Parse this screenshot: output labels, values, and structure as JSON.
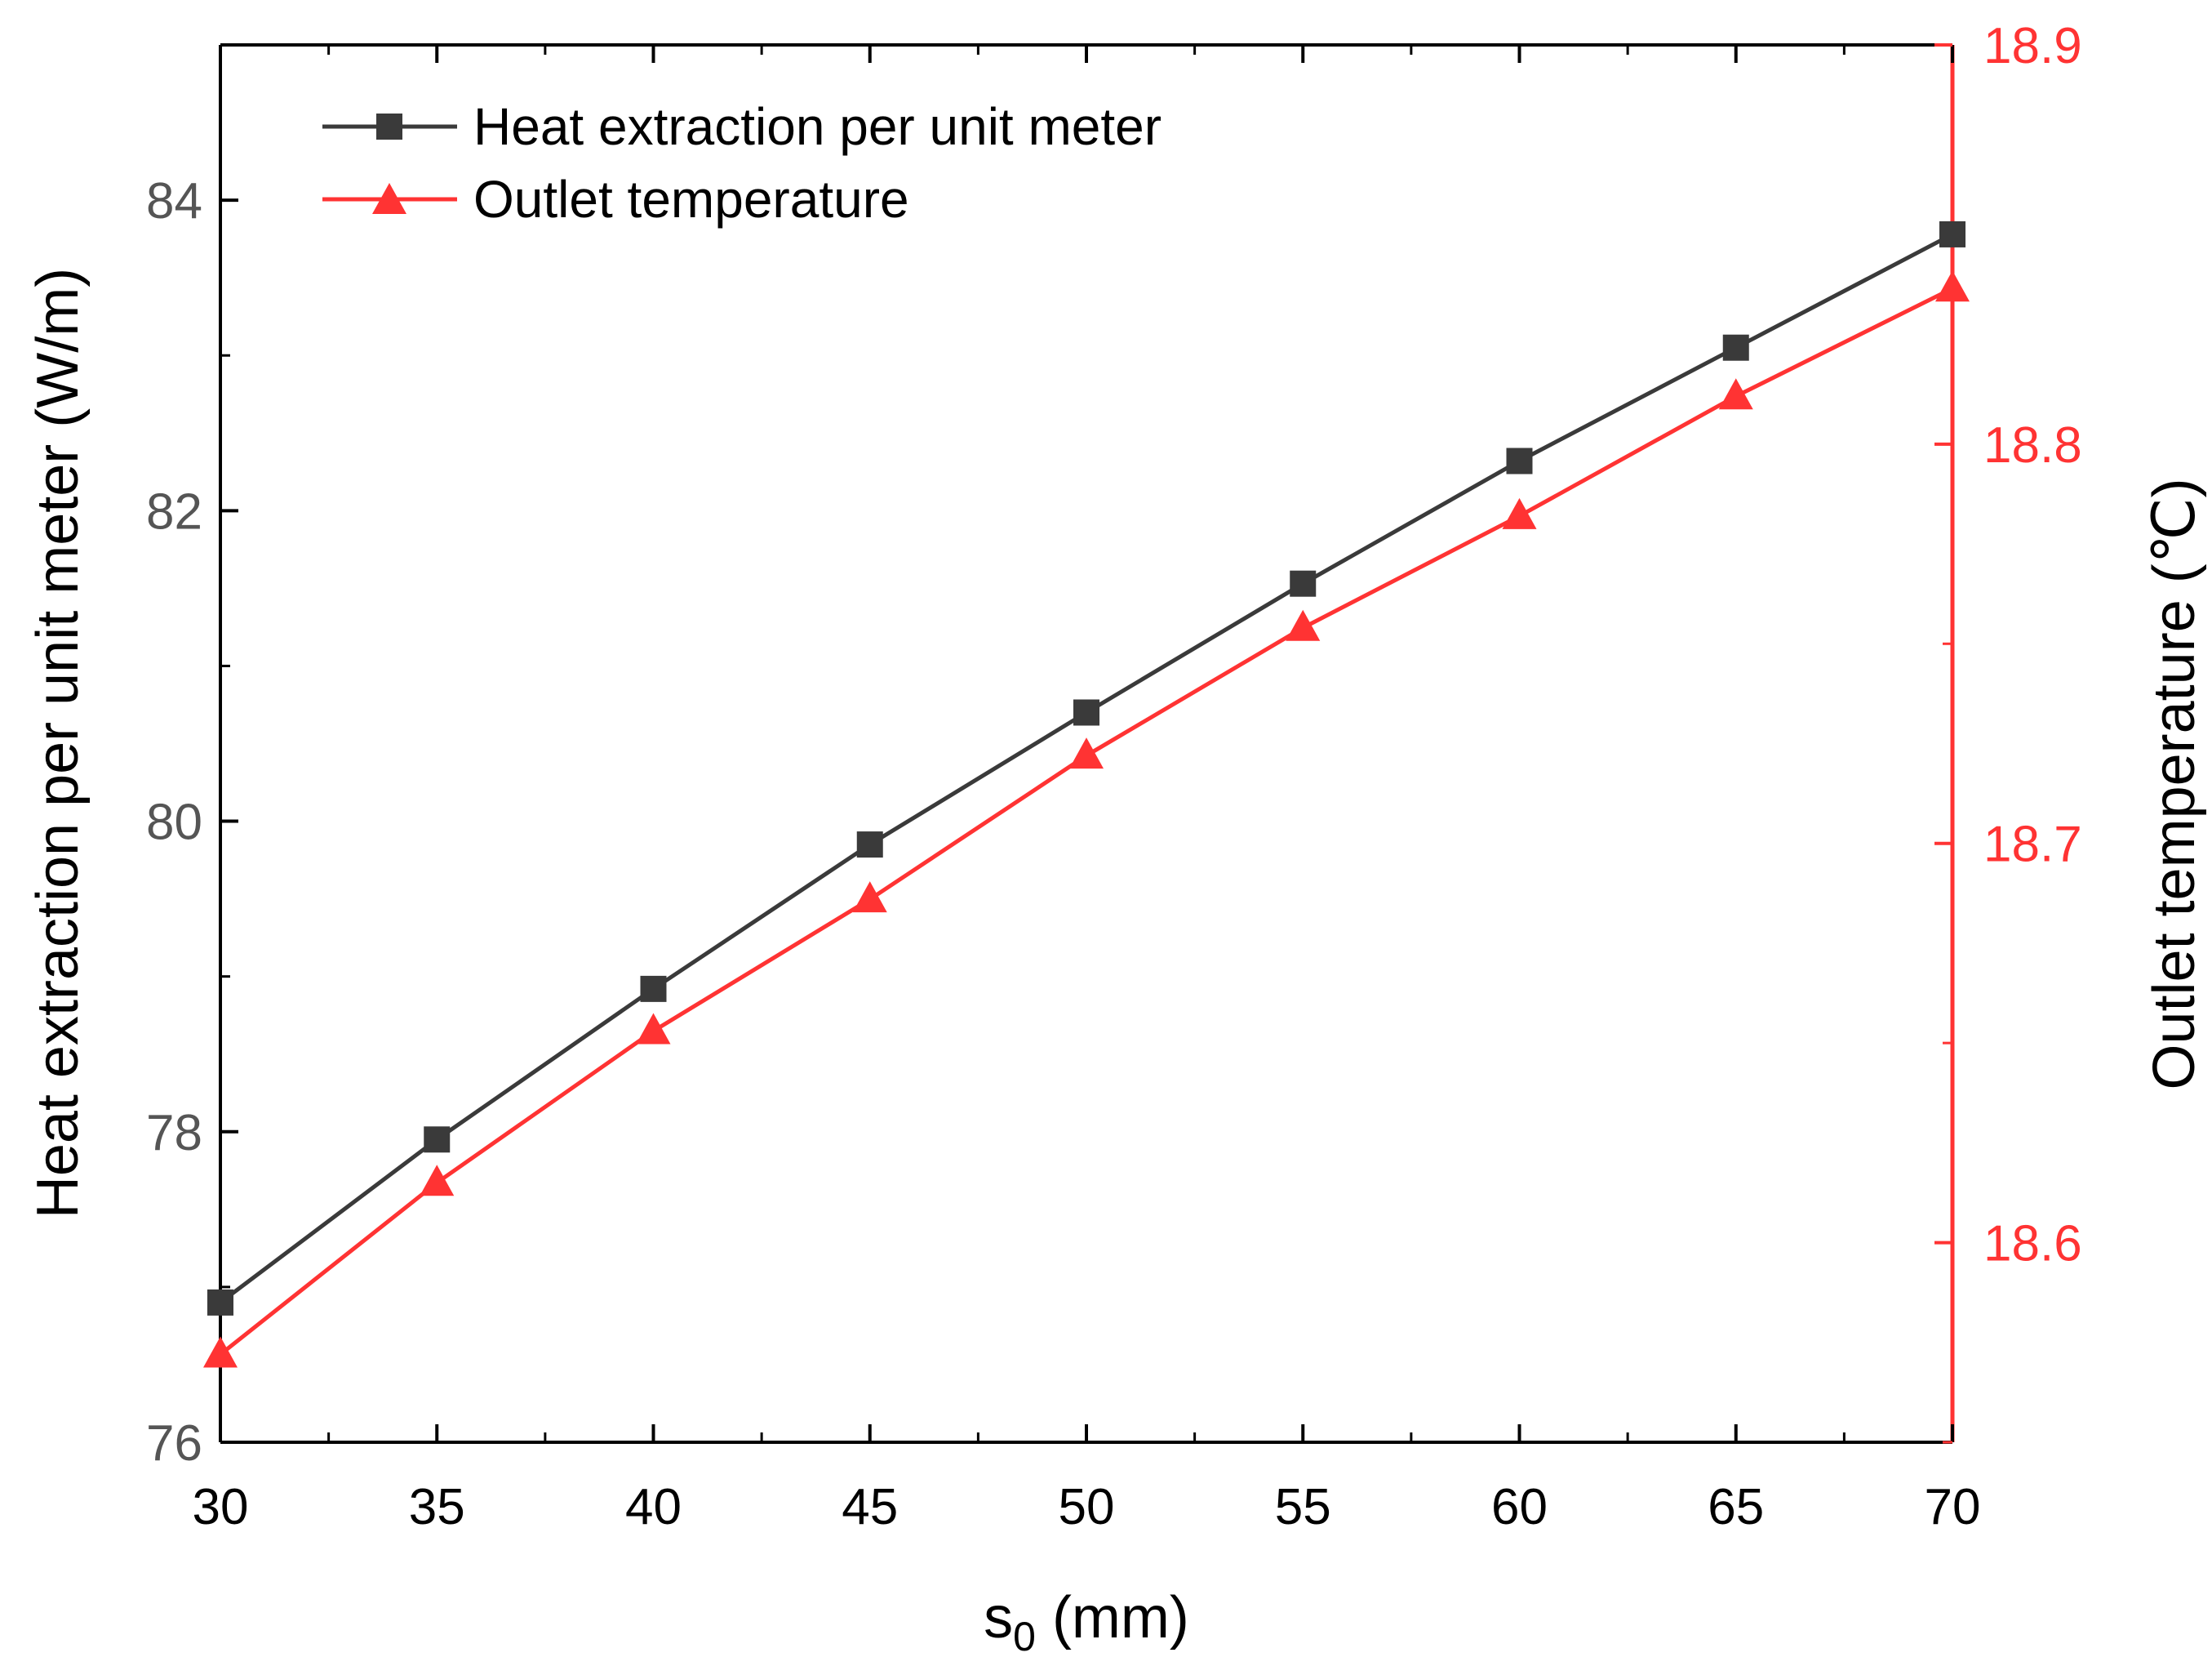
{
  "chart_data": {
    "type": "line",
    "title": "",
    "xlabel": "s",
    "xlabel_sub": "0",
    "xlabel_unit": " (mm)",
    "x": [
      30,
      35,
      40,
      45,
      50,
      55,
      60,
      65,
      70
    ],
    "xlim": [
      30,
      70
    ],
    "xticks": [
      30,
      35,
      40,
      45,
      50,
      55,
      60,
      65,
      70
    ],
    "xtick_labels": [
      "30",
      "35",
      "40",
      "45",
      "50",
      "55",
      "60",
      "65",
      "70"
    ],
    "y_left": {
      "label": "Heat extraction per unit meter (W/m)",
      "lim": [
        76,
        85
      ],
      "ticks": [
        76,
        78,
        80,
        82,
        84
      ],
      "tick_labels": [
        "76",
        "78",
        "80",
        "82",
        "84"
      ],
      "color": "#000000"
    },
    "y_right": {
      "label": "Outlet temperature (℃)",
      "lim": [
        18.55,
        18.9
      ],
      "ticks": [
        18.6,
        18.7,
        18.8,
        18.9
      ],
      "tick_labels": [
        "18.6",
        "18.7",
        "18.8",
        "18.9"
      ],
      "color": "#ff3333"
    },
    "series": [
      {
        "name": "Heat extraction per unit meter",
        "axis": "left",
        "marker": "square",
        "color": "#3a3a3a",
        "values": [
          76.9,
          77.95,
          78.92,
          79.85,
          80.7,
          81.53,
          82.32,
          83.05,
          83.78
        ]
      },
      {
        "name": "Outlet temperature",
        "axis": "right",
        "marker": "triangle",
        "color": "#ff3333",
        "values": [
          18.572,
          18.615,
          18.653,
          18.686,
          18.722,
          18.754,
          18.782,
          18.812,
          18.839
        ]
      }
    ],
    "legend_position": "top-left",
    "grid": false
  }
}
